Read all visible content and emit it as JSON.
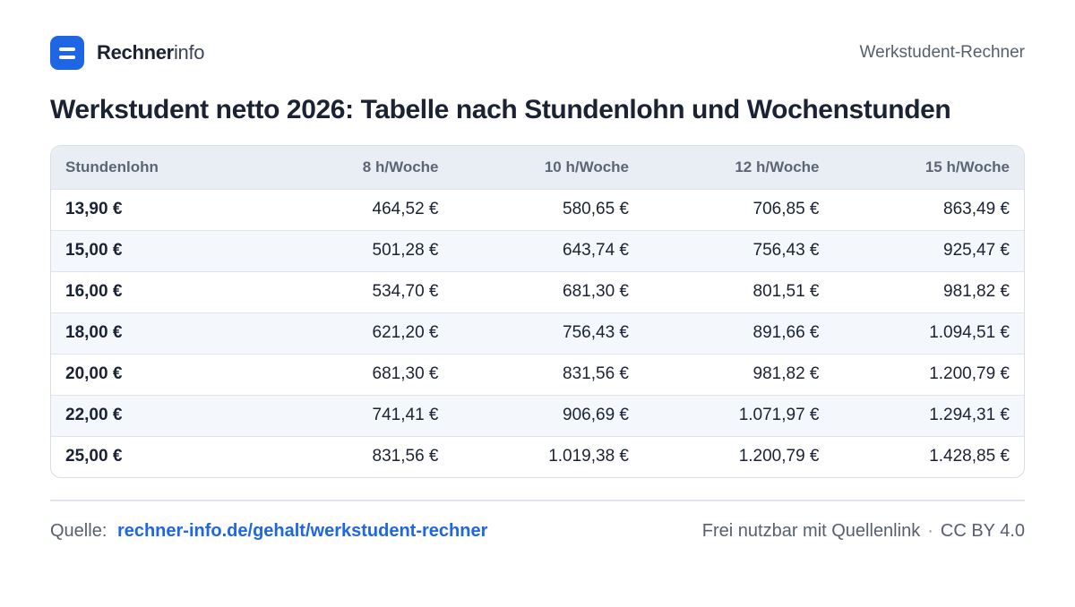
{
  "header": {
    "brand_bold": "Rechner",
    "brand_light": "info",
    "page_label": "Werkstudent-Rechner"
  },
  "title": "Werkstudent netto 2026: Tabelle nach Stundenlohn und Wochenstunden",
  "table": {
    "columns": [
      "Stundenlohn",
      "8 h/Woche",
      "10 h/Woche",
      "12 h/Woche",
      "15 h/Woche"
    ],
    "rows": [
      [
        "13,90 €",
        "464,52 €",
        "580,65 €",
        "706,85 €",
        "863,49 €"
      ],
      [
        "15,00 €",
        "501,28 €",
        "643,74 €",
        "756,43 €",
        "925,47 €"
      ],
      [
        "16,00 €",
        "534,70 €",
        "681,30 €",
        "801,51 €",
        "981,82 €"
      ],
      [
        "18,00 €",
        "621,20 €",
        "756,43 €",
        "891,66 €",
        "1.094,51 €"
      ],
      [
        "20,00 €",
        "681,30 €",
        "831,56 €",
        "981,82 €",
        "1.200,79 €"
      ],
      [
        "22,00 €",
        "741,41 €",
        "906,69 €",
        "1.071,97 €",
        "1.294,31 €"
      ],
      [
        "25,00 €",
        "831,56 €",
        "1.019,38 €",
        "1.200,79 €",
        "1.428,85 €"
      ]
    ]
  },
  "footer": {
    "source_label": "Quelle:",
    "source_link": "rechner-info.de/gehalt/werkstudent-rechner",
    "license_text": "Frei nutzbar mit Quellenlink",
    "separator": "·",
    "license": "CC BY 4.0"
  },
  "colors": {
    "accent": "#1f66e5",
    "header_bg": "#e9eef5",
    "stripe_bg": "#f4f7fb"
  }
}
